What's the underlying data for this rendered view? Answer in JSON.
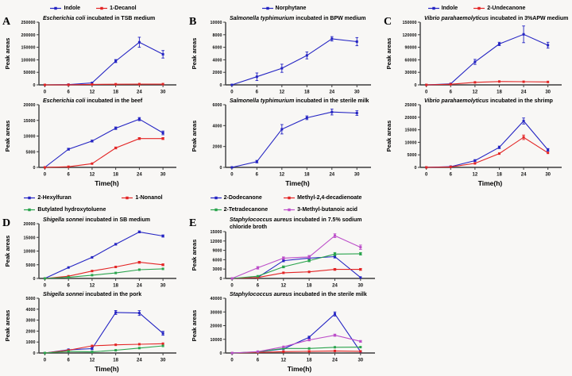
{
  "figure": {
    "background": "#f8f7f5",
    "axis_color": "#3c3c3c",
    "xlabel": "Time(h)",
    "ylabel": "Peak areas"
  },
  "chart_data": {
    "type": "line",
    "x": [
      0,
      6,
      12,
      18,
      24,
      30
    ],
    "xlabel": "Time(h)",
    "ylabel": "Peak areas",
    "panels": [
      {
        "letter": "A",
        "legend": [
          {
            "label": "Indole",
            "color": "#2424c3"
          },
          {
            "label": "1-Decanol",
            "color": "#e32424"
          }
        ],
        "plots": [
          {
            "title_italic": "Escherichia coli",
            "title_rest": " incubated in TSB medium",
            "ymax": 250000,
            "ystep": 50000,
            "series": [
              {
                "values": [
                  0,
                  1000,
                  8000,
                  95000,
                  170000,
                  122000
                ],
                "err": [
                  0,
                  0,
                  0,
                  6000,
                  20000,
                  15000
                ]
              },
              {
                "values": [
                  0,
                  400,
                  2000,
                  2600,
                  3000,
                  3000
                ],
                "err": [
                  0,
                  0,
                  0,
                  0,
                  0,
                  0
                ]
              }
            ]
          },
          {
            "title_italic": "Escherichia coli",
            "title_rest": " incubated in the beef",
            "ymax": 20000,
            "ystep": 5000,
            "series": [
              {
                "values": [
                  0,
                  5800,
                  8400,
                  12500,
                  15400,
                  11000
                ],
                "err": [
                  0,
                  300,
                  300,
                  400,
                  500,
                  600
                ]
              },
              {
                "values": [
                  0,
                  200,
                  1200,
                  6200,
                  9200,
                  9200
                ],
                "err": [
                  0,
                  0,
                  200,
                  300,
                  300,
                  300
                ]
              }
            ]
          }
        ]
      },
      {
        "letter": "B",
        "legend": [
          {
            "label": "Norphytane",
            "color": "#2424c3"
          }
        ],
        "plots": [
          {
            "title_italic": "Salmonella typhimurium",
            "title_rest": " incubated in BPW medium",
            "ymax": 10000,
            "ystep": 2000,
            "series": [
              {
                "values": [
                  0,
                  1300,
                  2650,
                  4700,
                  7350,
                  6900
                ],
                "err": [
                  0,
                  600,
                  650,
                  550,
                  350,
                  650
                ]
              }
            ]
          },
          {
            "title_italic": "Salmonella typhimurium",
            "title_rest": " incubated in the sterile milk",
            "ymax": 6000,
            "ystep": 2000,
            "series": [
              {
                "values": [
                  0,
                  550,
                  3650,
                  4750,
                  5300,
                  5200
                ],
                "err": [
                  0,
                  120,
                  450,
                  180,
                  280,
                  220
                ]
              }
            ]
          }
        ]
      },
      {
        "letter": "C",
        "legend": [
          {
            "label": "Indole",
            "color": "#2424c3"
          },
          {
            "label": "2-Undecanone",
            "color": "#e32424"
          }
        ],
        "plots": [
          {
            "title_italic": "Vibrio parahaemolyticus",
            "title_rest": " incubated in 3%APW medium",
            "ymax": 150000,
            "ystep": 30000,
            "series": [
              {
                "values": [
                  0,
                  2500,
                  55000,
                  98000,
                  121000,
                  95000
                ],
                "err": [
                  0,
                  0,
                  6000,
                  4000,
                  20000,
                  7000
                ]
              },
              {
                "values": [
                  0,
                  1500,
                  6000,
                  8000,
                  7500,
                  7000
                ],
                "err": [
                  0,
                  0,
                  0,
                  0,
                  0,
                  0
                ]
              }
            ]
          },
          {
            "title_italic": "Vibrio parahaemolyticus",
            "title_rest": " incubated in the shrimp",
            "ymax": 25000,
            "ystep": 5000,
            "series": [
              {
                "values": [
                  0,
                  300,
                  2700,
                  8000,
                  18500,
                  7000
                ],
                "err": [
                  0,
                  0,
                  400,
                  500,
                  1200,
                  500
                ]
              },
              {
                "values": [
                  0,
                  200,
                  1600,
                  5500,
                  12000,
                  5800
                ],
                "err": [
                  0,
                  0,
                  200,
                  300,
                  900,
                  300
                ]
              }
            ]
          }
        ]
      },
      {
        "letter": "D",
        "legend": [
          {
            "label": "2-Hexylfuran",
            "color": "#2424c3"
          },
          {
            "label": "1-Nonanol",
            "color": "#e32424"
          },
          {
            "label": "Butylated hydroxytoluene",
            "color": "#2aa44d"
          }
        ],
        "plots": [
          {
            "title_italic": "Shigella sonnei",
            "title_rest": " incubated in SB medium",
            "ymax": 20000,
            "ystep": 5000,
            "series": [
              {
                "values": [
                  0,
                  4000,
                  7700,
                  12500,
                  17000,
                  15500
                ],
                "err": [
                  0,
                  200,
                  250,
                  300,
                  350,
                  400
                ]
              },
              {
                "values": [
                  0,
                  800,
                  2700,
                  4200,
                  5900,
                  5000
                ],
                "err": [
                  0,
                  0,
                  200,
                  250,
                  350,
                  300
                ]
              },
              {
                "values": [
                  0,
                  400,
                  1200,
                  2000,
                  3200,
                  3500
                ],
                "err": [
                  0,
                  0,
                  0,
                  0,
                  0,
                  0
                ]
              }
            ]
          },
          {
            "title_italic": "Shigella sonnei",
            "title_rest": " incubated in the pork",
            "ymax": 5000,
            "ystep": 1000,
            "series": [
              {
                "values": [
                  0,
                  300,
                  400,
                  3700,
                  3650,
                  1800
                ],
                "err": [
                  0,
                  0,
                  100,
                  180,
                  220,
                  180
                ]
              },
              {
                "values": [
                  0,
                  250,
                  650,
                  750,
                  800,
                  850
                ],
                "err": [
                  0,
                  0,
                  0,
                  0,
                  0,
                  0
                ]
              },
              {
                "values": [
                  0,
                  150,
                  100,
                  250,
                  450,
                  650
                ],
                "err": [
                  0,
                  0,
                  0,
                  0,
                  0,
                  0
                ]
              }
            ]
          }
        ]
      },
      {
        "letter": "E",
        "legend": [
          {
            "label": "2-Dodecanone",
            "color": "#2424c3"
          },
          {
            "label": "Methyl-2,4-decadienoate",
            "color": "#e32424"
          },
          {
            "label": "2-Tetradecanone",
            "color": "#2aa44d"
          },
          {
            "label": "3-Methyl-butanoic acid",
            "color": "#bc4ec9"
          }
        ],
        "plots": [
          {
            "title_italic": "Staphylococcus aureus",
            "title_rest": " incubated in 7.5% sodium",
            "title_line2": "chloride broth",
            "ymax": 15000,
            "ystep": 3000,
            "series": [
              {
                "values": [
                  0,
                  300,
                  5700,
                  6500,
                  7000,
                  300
                ],
                "err": [
                  0,
                  0,
                  350,
                  400,
                  450,
                  150
                ]
              },
              {
                "values": [
                  0,
                  300,
                  1800,
                  2100,
                  2900,
                  2900
                ],
                "err": [
                  0,
                  0,
                  200,
                  250,
                  300,
                  300
                ]
              },
              {
                "values": [
                  0,
                  700,
                  3700,
                  5700,
                  7800,
                  7900
                ],
                "err": [
                  0,
                  100,
                  300,
                  350,
                  500,
                  400
                ]
              },
              {
                "values": [
                  0,
                  3400,
                  6500,
                  6900,
                  13700,
                  10000
                ],
                "err": [
                  0,
                  400,
                  400,
                  450,
                  600,
                  700
                ]
              }
            ]
          },
          {
            "title_italic": "Staphylococcus aureus",
            "title_rest": " incubated in the sterile milk",
            "ymax": 40000,
            "ystep": 10000,
            "series": [
              {
                "values": [
                  0,
                  700,
                  3000,
                  11500,
                  28500,
                  1000
                ],
                "err": [
                  0,
                  0,
                  300,
                  800,
                  1500,
                  300
                ]
              },
              {
                "values": [
                  0,
                  400,
                  1000,
                  1200,
                  1500,
                  1200
                ],
                "err": [
                  0,
                  0,
                  0,
                  0,
                  0,
                  0
                ]
              },
              {
                "values": [
                  0,
                  800,
                  3300,
                  3300,
                  4200,
                  4300
                ],
                "err": [
                  0,
                  0,
                  0,
                  0,
                  0,
                  0
                ]
              },
              {
                "values": [
                  0,
                  1000,
                  4500,
                  9500,
                  13000,
                  8500
                ],
                "err": [
                  0,
                  150,
                  400,
                  600,
                  800,
                  600
                ]
              }
            ]
          }
        ]
      }
    ]
  }
}
